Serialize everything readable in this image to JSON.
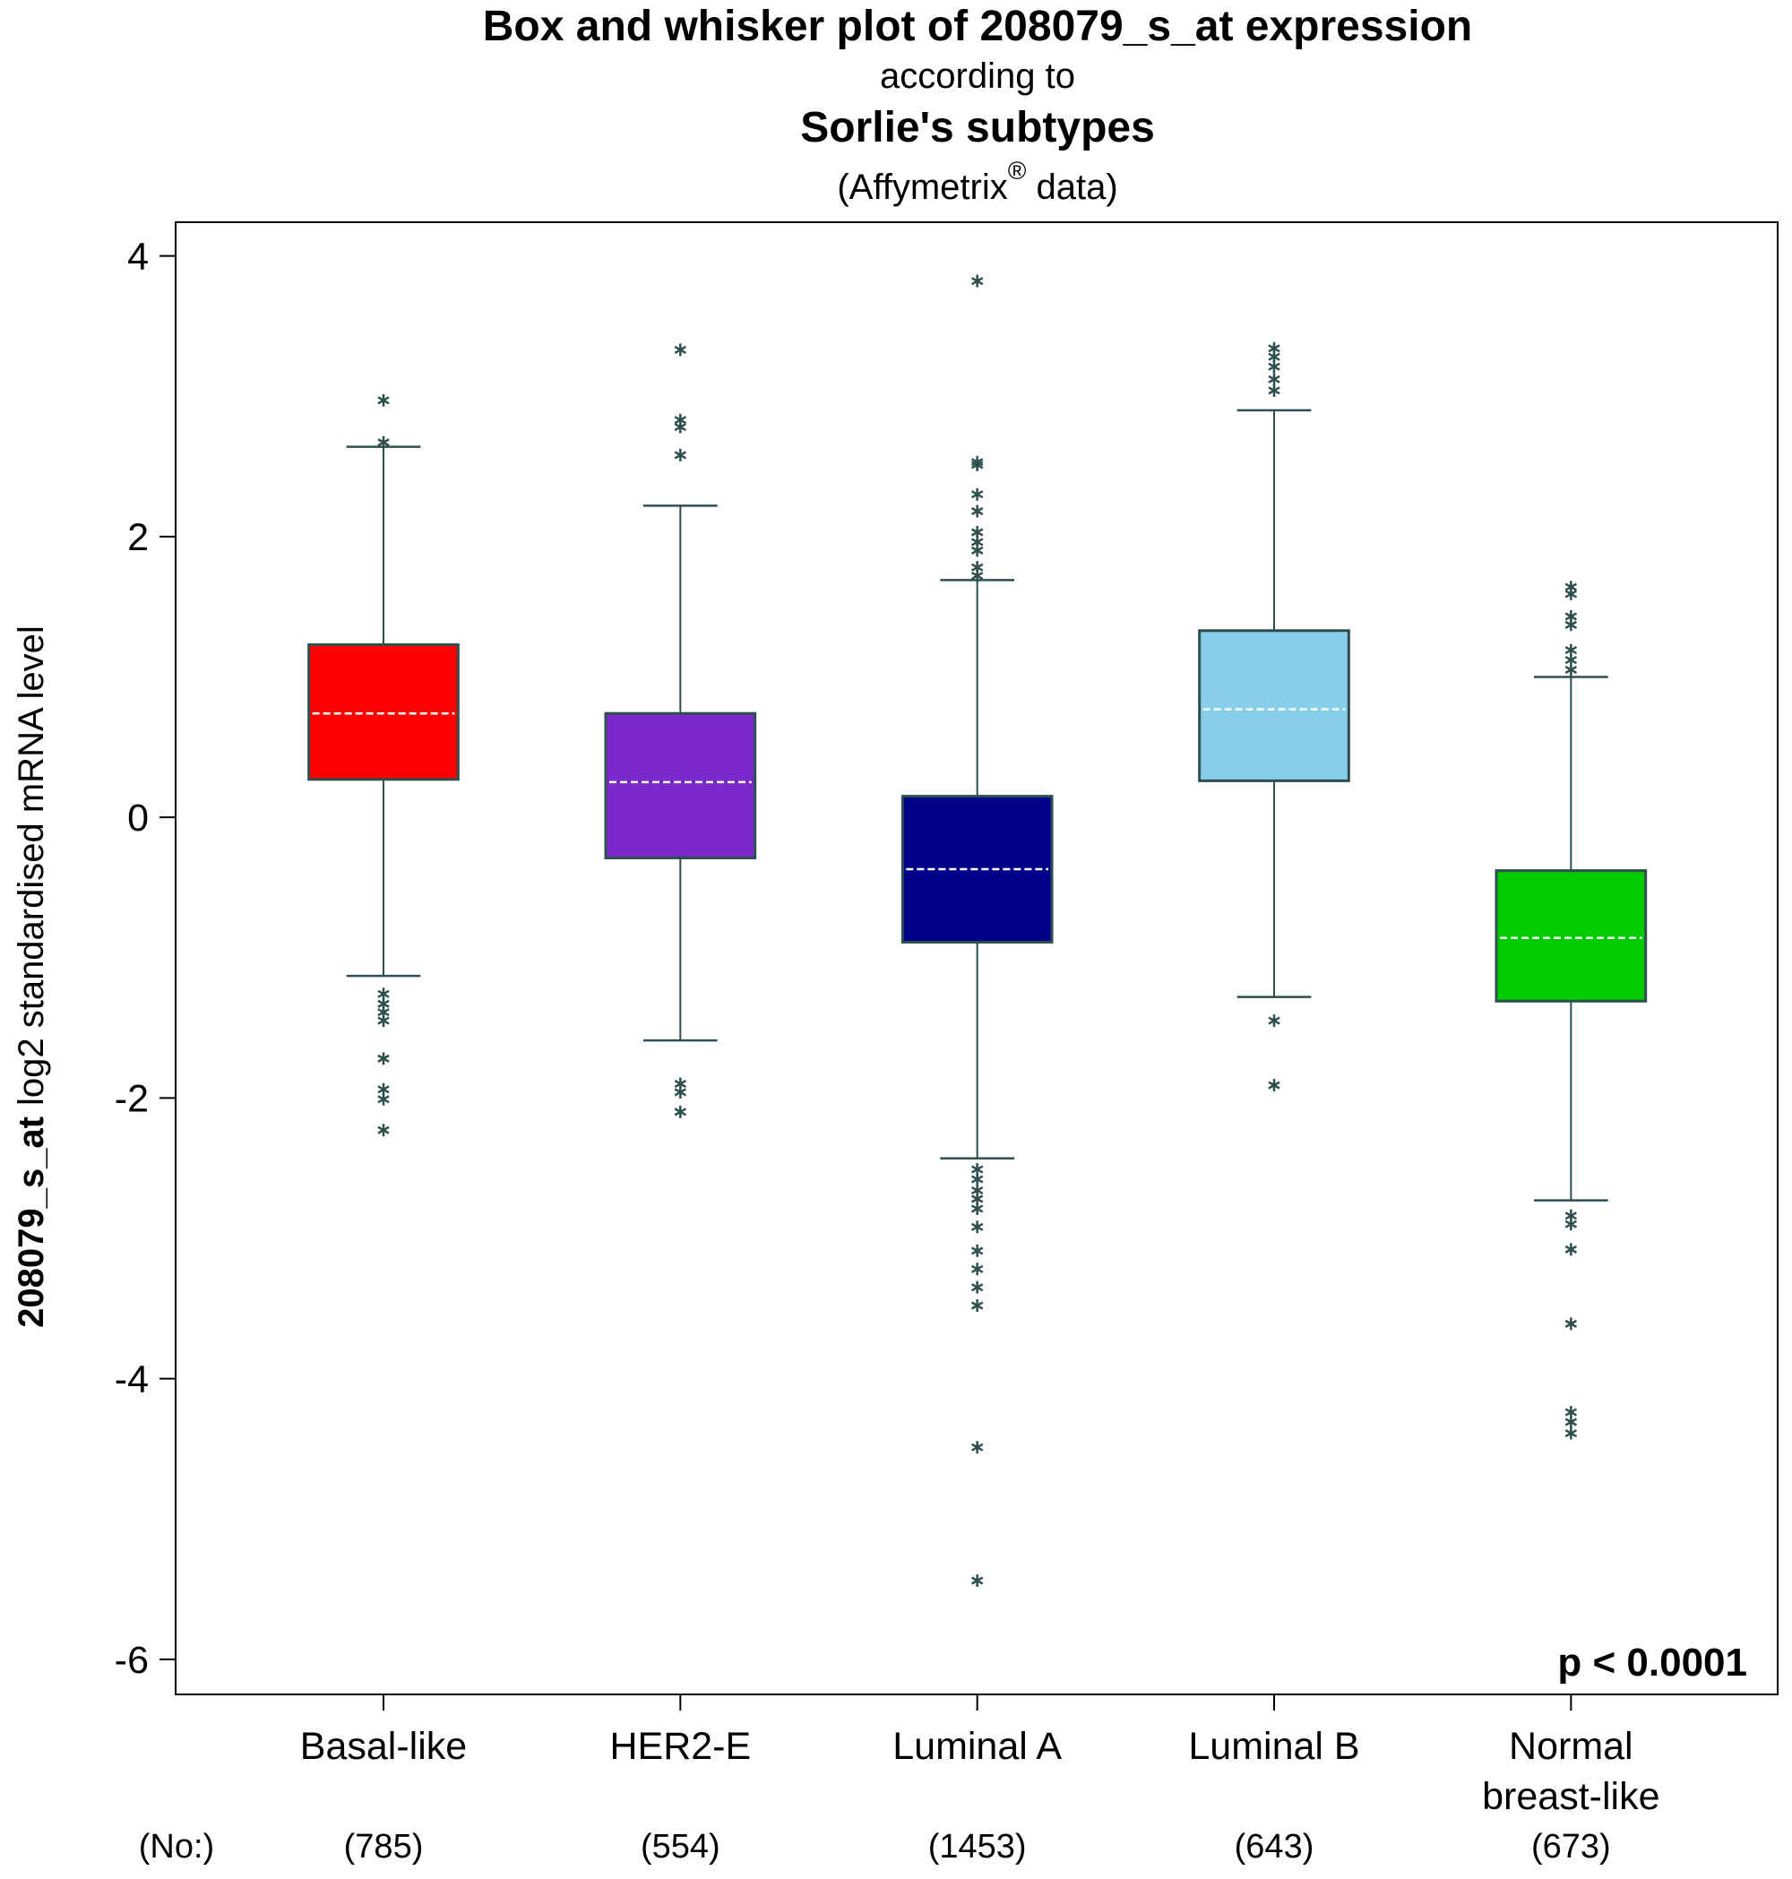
{
  "chart_data": {
    "type": "boxplot",
    "title": "Box and whisker plot of 208079_s_at expression",
    "subtitle": "according to",
    "title2": "Sorlie's subtypes",
    "subtitle2_parts": [
      "(Affymetrix",
      "®",
      " data)"
    ],
    "ylabel_bold": "208079_s_at",
    "ylabel": "log2 standardised mRNA level",
    "annotation": "p < 0.0001",
    "counts_label": "(No:)",
    "counts": [
      "(785)",
      "(554)",
      "(1453)",
      "(643)",
      "(673)"
    ],
    "categories": [
      [
        "Basal-like"
      ],
      [
        "HER2-E"
      ],
      [
        "Luminal A"
      ],
      [
        "Luminal B"
      ],
      [
        "Normal",
        "breast-like"
      ]
    ],
    "ylim": [
      -6.25,
      4.24
    ],
    "yticks": [
      -6,
      -4,
      -2,
      0,
      2,
      4
    ],
    "whisker_color": "#2f4f4f",
    "boxes": [
      {
        "color": "#ff0000",
        "whisker_low": -1.13,
        "q1": 0.27,
        "median": 0.74,
        "q3": 1.23,
        "whisker_high": 2.64,
        "outliers": [
          2.99,
          2.69,
          -1.24,
          -1.31,
          -1.37,
          -1.43,
          -1.7,
          -1.92,
          -1.99,
          -2.21
        ]
      },
      {
        "color": "#7b28cc",
        "whisker_low": -1.59,
        "q1": -0.29,
        "median": 0.25,
        "q3": 0.74,
        "whisker_high": 2.22,
        "outliers": [
          3.35,
          2.85,
          2.8,
          2.6,
          -1.88,
          -1.94,
          -2.08
        ]
      },
      {
        "color": "#00008b",
        "whisker_low": -2.43,
        "q1": -0.89,
        "median": -0.37,
        "q3": 0.15,
        "whisker_high": 1.69,
        "outliers": [
          3.84,
          2.55,
          2.53,
          2.32,
          2.2,
          2.05,
          1.98,
          1.92,
          1.8,
          1.74,
          -2.49,
          -2.56,
          -2.64,
          -2.7,
          -2.77,
          -2.9,
          -3.07,
          -3.2,
          -3.33,
          -3.46,
          -4.47,
          -5.42
        ]
      },
      {
        "color": "#87ceeb",
        "whisker_low": -1.28,
        "q1": 0.26,
        "median": 0.77,
        "q3": 1.33,
        "whisker_high": 2.9,
        "outliers": [
          3.36,
          3.3,
          3.23,
          3.14,
          3.06,
          -1.43,
          -1.89
        ]
      },
      {
        "color": "#00cc00",
        "whisker_low": -2.73,
        "q1": -1.31,
        "median": -0.86,
        "q3": -0.38,
        "whisker_high": 1.0,
        "outliers": [
          1.66,
          1.61,
          1.45,
          1.39,
          1.21,
          1.14,
          1.07,
          -2.82,
          -2.88,
          -3.06,
          -3.59,
          -4.22,
          -4.29,
          -4.37
        ]
      }
    ]
  }
}
